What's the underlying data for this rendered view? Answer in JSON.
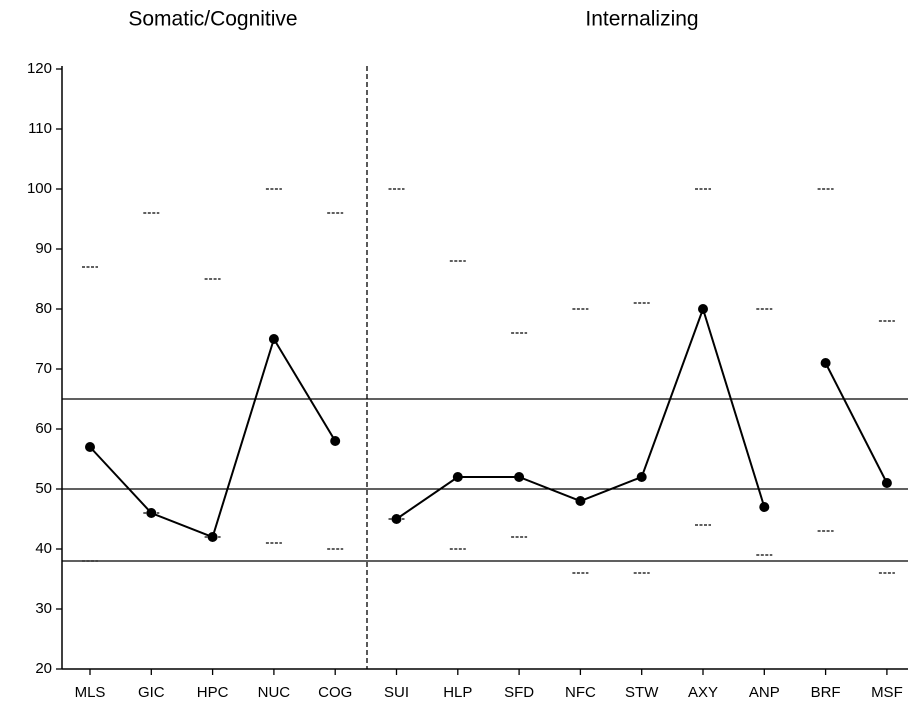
{
  "chart_data": {
    "type": "line",
    "group_titles": [
      "Somatic/Cognitive",
      "Internalizing"
    ],
    "categories": [
      "MLS",
      "GIC",
      "HPC",
      "NUC",
      "COG",
      "SUI",
      "HLP",
      "SFD",
      "NFC",
      "STW",
      "AXY",
      "ANP",
      "BRF",
      "MSF"
    ],
    "series": [
      {
        "color": "#000000",
        "values": [
          57,
          46,
          42,
          75,
          58,
          null,
          null,
          null,
          null,
          null,
          null,
          null,
          null,
          null
        ]
      },
      {
        "color": "#000000",
        "values": [
          null,
          null,
          null,
          null,
          null,
          45,
          52,
          52,
          48,
          52,
          80,
          47,
          null,
          null
        ]
      },
      {
        "color": "#000000",
        "values": [
          null,
          null,
          null,
          null,
          null,
          null,
          null,
          null,
          null,
          null,
          null,
          null,
          71,
          51
        ]
      }
    ],
    "upper_marks": [
      87,
      96,
      85,
      100,
      96,
      100,
      88,
      76,
      80,
      81,
      100,
      80,
      100,
      78
    ],
    "lower_marks": [
      38,
      46,
      42,
      41,
      40,
      45,
      40,
      42,
      36,
      36,
      44,
      39,
      43,
      36
    ],
    "reference_lines": [
      65,
      50,
      38
    ],
    "ylim": [
      20,
      120
    ],
    "yticks": [
      20,
      30,
      40,
      50,
      60,
      70,
      80,
      90,
      100,
      110,
      120
    ]
  }
}
